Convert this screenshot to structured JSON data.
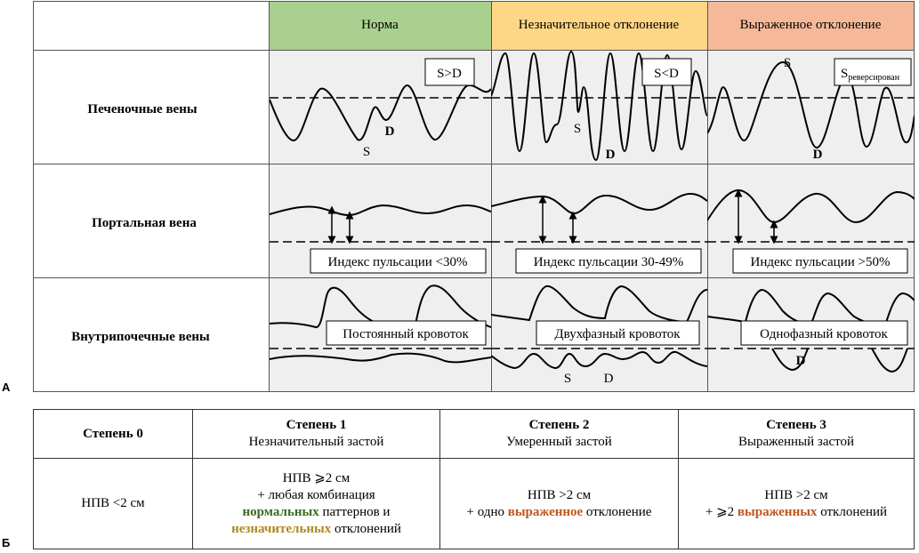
{
  "panel_labels": {
    "a": "А",
    "b": "Б"
  },
  "columns": {
    "norm": "Норма",
    "mild": "Незначительное отклонение",
    "severe": "Выраженное отклонение"
  },
  "colors": {
    "norm": "#a9d08e",
    "mild": "#ffd685",
    "severe": "#f5b99a",
    "cell": "#efefef"
  },
  "rows": {
    "hepatic": "Печеночные вены",
    "portal": "Портальная вена",
    "intrarenal": "Внутрипочечные вены"
  },
  "hepatic": {
    "norm_box": "S>D",
    "mild_box": "S<D",
    "severe_box_main": "S",
    "severe_box_sub": "реверсирован",
    "S": "S",
    "D": "D"
  },
  "portal": {
    "norm_box": "Индекс пульсации <30%",
    "mild_box": "Индекс пульсации 30-49%",
    "severe_box": "Индекс пульсации >50%"
  },
  "intrarenal": {
    "norm_box": "Постоянный кровоток",
    "mild_box": "Двухфазный кровоток",
    "severe_box": "Однофазный кровоток",
    "S": "S",
    "D": "D"
  },
  "grades": [
    {
      "title": "Степень 0",
      "subtitle": ""
    },
    {
      "title": "Степень 1",
      "subtitle": "Незначительный застой"
    },
    {
      "title": "Степень 2",
      "subtitle": "Умеренный застой"
    },
    {
      "title": "Степень 3",
      "subtitle": "Выраженный застой"
    }
  ],
  "criteria": {
    "g0": "НПВ <2 см",
    "g1_line1": "НПВ ⩾2 см",
    "g1_line2": "+ любая комбинация",
    "g1_normal": "нормальных",
    "g1_patterns": " паттернов и",
    "g1_minor": "незначительных",
    "g1_deviations": " отклонений",
    "g2_line1": "НПВ >2 см",
    "g2_prefix": "+ одно ",
    "g2_severe": "выраженное",
    "g2_suffix": " отклонение",
    "g3_line1": "НПВ >2 см",
    "g3_prefix": "+ ⩾2 ",
    "g3_severe": "выраженных",
    "g3_suffix": " отклонений"
  }
}
